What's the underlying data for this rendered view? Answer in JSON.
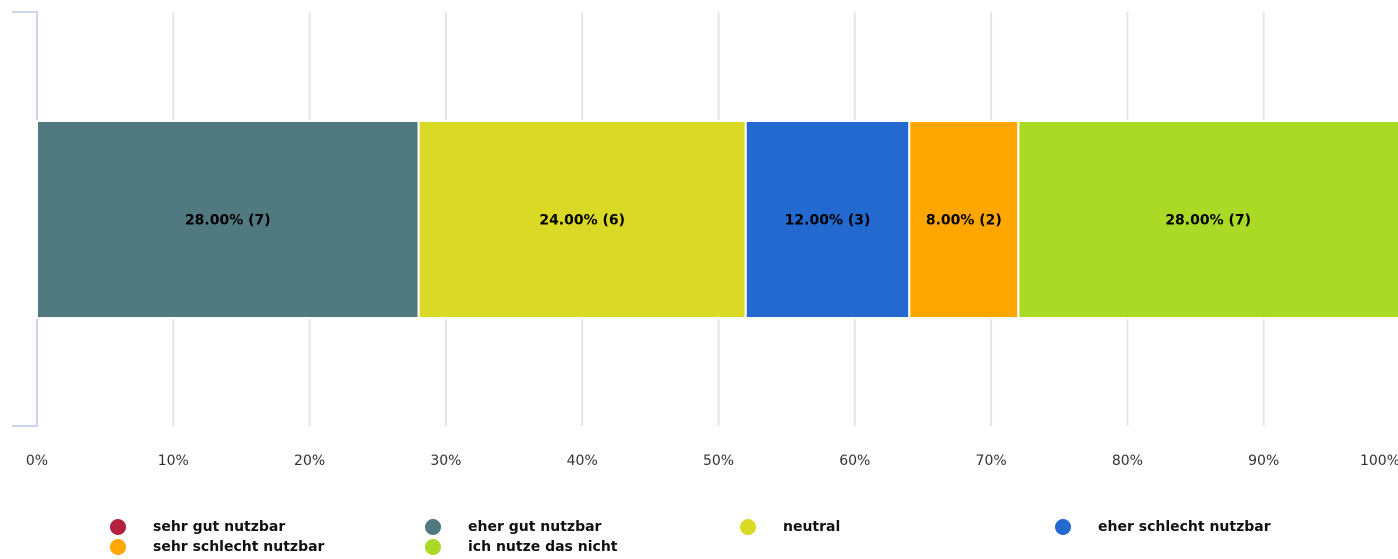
{
  "chart_data": {
    "type": "bar",
    "orientation": "horizontal",
    "stacked": true,
    "xlim": [
      0,
      100
    ],
    "x_ticks": [
      "0%",
      "10%",
      "20%",
      "30%",
      "40%",
      "50%",
      "60%",
      "70%",
      "80%",
      "90%",
      "100%"
    ],
    "grid": true,
    "legend_position": "bottom",
    "series": [
      {
        "name": "sehr gut nutzbar",
        "value": 0,
        "count": 0,
        "color": "#b5213d",
        "label": ""
      },
      {
        "name": "eher gut nutzbar",
        "value": 28.0,
        "count": 7,
        "color": "#507a80",
        "label": "28.00% (7)"
      },
      {
        "name": "neutral",
        "value": 24.0,
        "count": 6,
        "color": "#d9d926",
        "label": "24.00% (6)"
      },
      {
        "name": "eher schlecht nutzbar",
        "value": 12.0,
        "count": 3,
        "color": "#2469cf",
        "label": "12.00% (3)"
      },
      {
        "name": "sehr schlecht nutzbar",
        "value": 8.0,
        "count": 2,
        "color": "#ffa600",
        "label": "8.00% (2)"
      },
      {
        "name": "ich nutze das nicht",
        "value": 28.0,
        "count": 7,
        "color": "#aad926",
        "label": "28.00% (7)"
      }
    ]
  }
}
